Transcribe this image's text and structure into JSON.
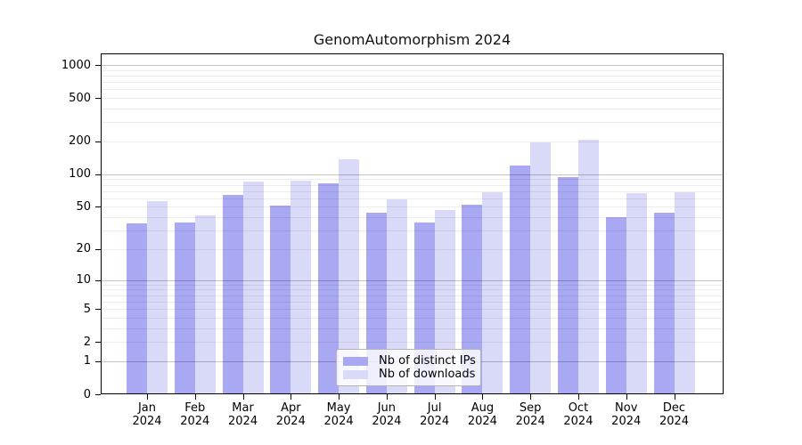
{
  "chart_data": {
    "type": "bar",
    "title": "GenomAutomorphism 2024",
    "xlabel": "",
    "ylabel": "",
    "categories": [
      "Jan 2024",
      "Feb 2024",
      "Mar 2024",
      "Apr 2024",
      "May 2024",
      "Jun 2024",
      "Jul 2024",
      "Aug 2024",
      "Sep 2024",
      "Oct 2024",
      "Nov 2024",
      "Dec 2024"
    ],
    "series": [
      {
        "name": "Nb of distinct IPs",
        "color": "#a8a8f3",
        "values": [
          35,
          36,
          65,
          51,
          82,
          44,
          36,
          52,
          120,
          95,
          40,
          44
        ]
      },
      {
        "name": "Nb of downloads",
        "color": "#d9d9f8",
        "values": [
          57,
          42,
          85,
          87,
          138,
          59,
          47,
          68,
          195,
          206,
          67,
          68
        ]
      }
    ],
    "yscale": "log10(value+1)",
    "ylim": [
      0,
      1275
    ],
    "yticks": [
      0,
      1,
      2,
      5,
      10,
      20,
      50,
      100,
      200,
      500,
      1000
    ],
    "major_gridlines": [
      1,
      10,
      100,
      1000
    ],
    "minor_gridlines": [
      2,
      3,
      4,
      5,
      6,
      7,
      8,
      9,
      20,
      30,
      40,
      50,
      60,
      70,
      80,
      90,
      200,
      300,
      400,
      500,
      600,
      700,
      800,
      900
    ],
    "grid": true,
    "legend_position": "lower center"
  }
}
